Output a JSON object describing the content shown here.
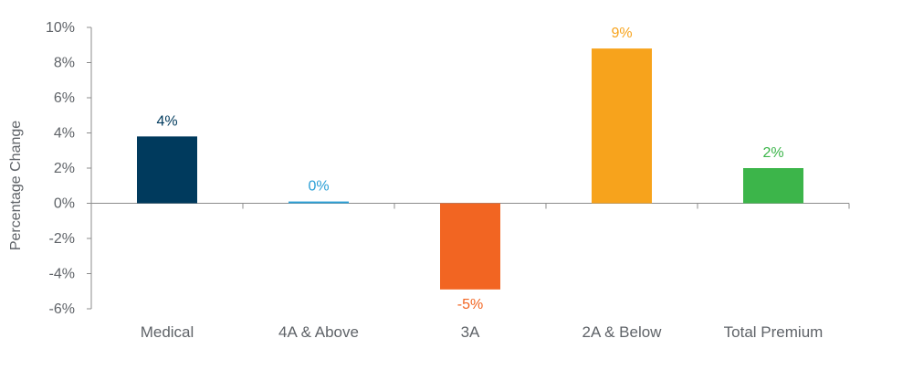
{
  "chart_data": {
    "type": "bar",
    "title": "",
    "xlabel": "",
    "ylabel": "Percentage Change",
    "ylim": [
      -6,
      10
    ],
    "yticks": [
      10,
      8,
      6,
      4,
      2,
      0,
      -2,
      -4,
      -6
    ],
    "ytick_labels": [
      "10%",
      "8%",
      "6%",
      "4%",
      "2%",
      "0%",
      "-2%",
      "-4%",
      "-6%"
    ],
    "categories": [
      "Medical",
      "4A & Above",
      "3A",
      "2A & Below",
      "Total Premium"
    ],
    "values": [
      3.8,
      0.1,
      -4.9,
      8.8,
      2.0
    ],
    "data_labels": [
      "4%",
      "0%",
      "-5%",
      "9%",
      "2%"
    ],
    "colors": [
      "#003a5d",
      "#2a9fd6",
      "#f26522",
      "#f7a31c",
      "#3cb54a"
    ],
    "grid": false,
    "legend": "none"
  }
}
